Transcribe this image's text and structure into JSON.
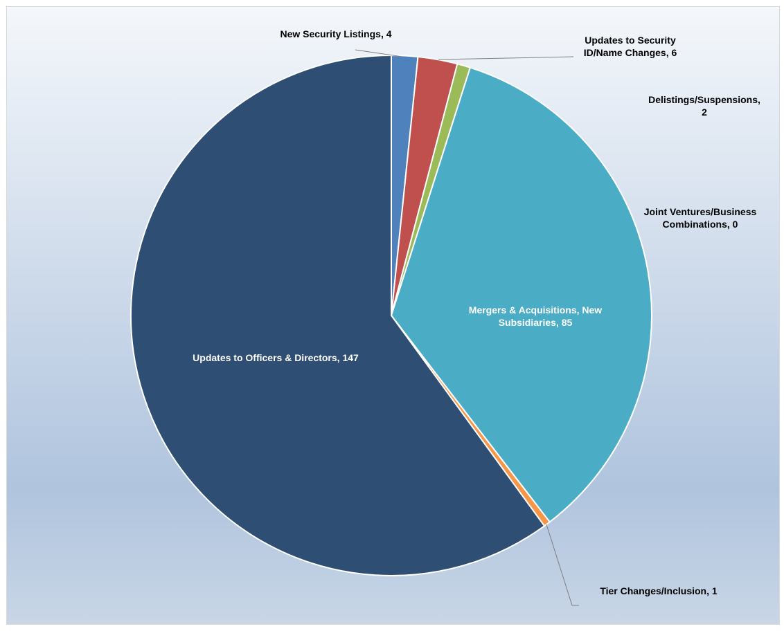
{
  "chart_data": {
    "type": "pie",
    "title": "",
    "start_angle_deg": 0,
    "direction": "clockwise",
    "slices": [
      {
        "label": "New Security Listings",
        "value": 4,
        "color": "#4f81bd",
        "display": "New Security Listings, 4"
      },
      {
        "label": "Updates to Security ID/Name Changes",
        "value": 6,
        "color": "#c0504d",
        "display_lines": [
          "Updates to Security",
          "ID/Name Changes, 6"
        ]
      },
      {
        "label": "Delistings/Suspensions",
        "value": 2,
        "color": "#9bbb59",
        "display_lines": [
          "Delistings/Suspensions,",
          "2"
        ]
      },
      {
        "label": "Joint Ventures/Business Combinations",
        "value": 0,
        "color": "#8064a2",
        "display_lines": [
          "Joint Ventures/Business",
          "Combinations, 0"
        ]
      },
      {
        "label": "Mergers & Acquisitions, New Subsidiaries",
        "value": 85,
        "color": "#4bacc6",
        "display_lines": [
          "Mergers & Acquisitions, New",
          "Subsidiaries, 85"
        ]
      },
      {
        "label": "Tier Changes/Inclusion",
        "value": 1,
        "color": "#f79646",
        "display": "Tier Changes/Inclusion, 1"
      },
      {
        "label": "Updates to Officers & Directors",
        "value": 147,
        "color": "#2e4e73",
        "display": "Updates to Officers & Directors, 147"
      }
    ],
    "legend": "none",
    "colors": {
      "background_top": "#f4f7fb",
      "background_mid": "#b0c4de",
      "background_bottom": "#c8d6e6",
      "leader_line": "#7f7f7f",
      "slice_border": "#ffffff"
    }
  }
}
